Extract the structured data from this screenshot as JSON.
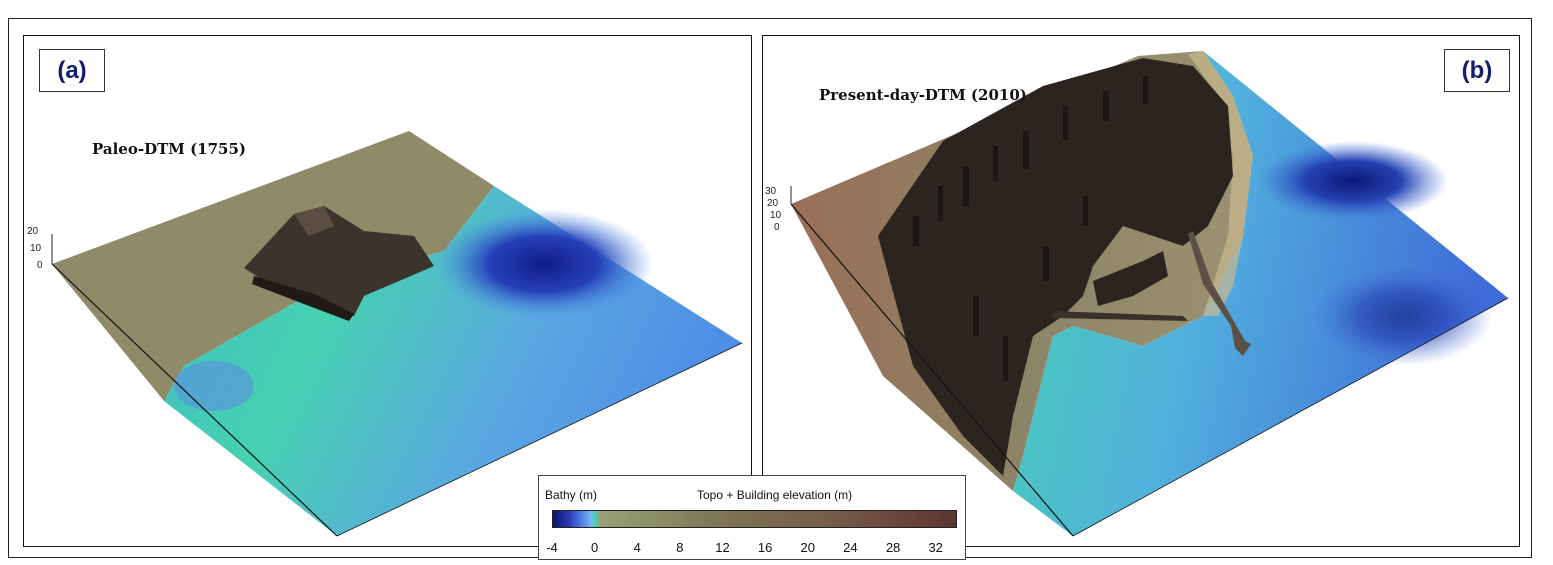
{
  "panels": {
    "a": {
      "label": "(a)",
      "title": "Paleo-DTM (1755)",
      "z_ticks": [
        "20",
        "10",
        "0"
      ]
    },
    "b": {
      "label": "(b)",
      "title": "Present-day-DTM (2010)",
      "z_ticks": [
        "30",
        "20",
        "10",
        "0"
      ]
    }
  },
  "colorbar": {
    "bathy_title": "Bathy (m)",
    "topo_title": "Topo + Building elevation (m)",
    "ticks": [
      "-4",
      "0",
      "4",
      "8",
      "12",
      "16",
      "20",
      "24",
      "28",
      "32"
    ],
    "range": [
      -4,
      34
    ],
    "colors": {
      "deep": "#0a146e",
      "shallow": "#4d7fe6",
      "shore": "#3fd6b4",
      "low_land": "#9aa078",
      "high": "#5c3430"
    }
  }
}
